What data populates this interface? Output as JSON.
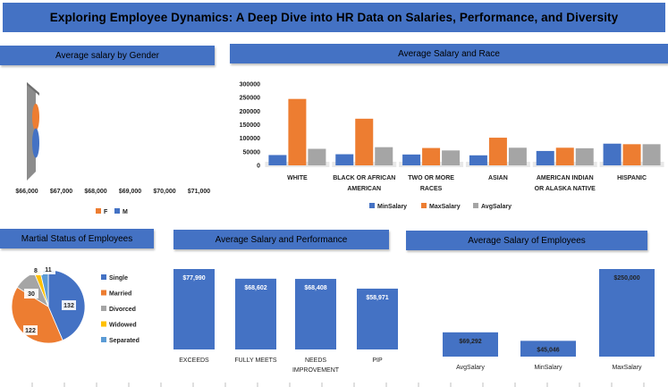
{
  "title": "Exploring Employee Dynamics: A Deep Dive into HR Data on Salaries, Performance, and Diversity",
  "colors": {
    "header": "#4472c4",
    "blue": "#4472c4",
    "orange": "#ed7d31",
    "gray": "#a5a5a5",
    "yellow": "#ffc000",
    "lightblue": "#5b9bd5"
  },
  "panels": {
    "gender": "Average salary  by Gender",
    "race": "Average  Salary and Race",
    "marital": "Martial Status of Employees",
    "performance": "Average  Salary and Performance",
    "employees": "Average  Salary  of Employees"
  },
  "chart_data": [
    {
      "id": "gender",
      "type": "bar",
      "orientation": "horizontal",
      "style": "3d-cylinder",
      "categories": [
        "M",
        "F"
      ],
      "series": [
        {
          "name": "F",
          "values": [
            null,
            67900
          ]
        },
        {
          "name": "M",
          "values": [
            70500,
            null
          ]
        }
      ],
      "xlim": [
        66000,
        71000
      ],
      "xticks": [
        "$66,000",
        "$67,000",
        "$68,000",
        "$69,000",
        "$70,000",
        "$71,000"
      ],
      "legend": [
        "F",
        "M"
      ],
      "legend_position": "bottom"
    },
    {
      "id": "race",
      "type": "bar",
      "categories": [
        "WHITE",
        "BLACK OR AFRICAN AMERICAN",
        "TWO OR MORE RACES",
        "ASIAN",
        "AMERICAN INDIAN OR ALASKA NATIVE",
        "HISPANIC"
      ],
      "category_lines": [
        [
          "WHITE"
        ],
        [
          "BLACK OR AFRICAN",
          "AMERICAN"
        ],
        [
          "TWO OR MORE",
          "RACES"
        ],
        [
          "ASIAN"
        ],
        [
          "AMERICAN INDIAN",
          "OR ALASKA NATIVE"
        ],
        [
          "HISPANIC"
        ]
      ],
      "series": [
        {
          "name": "MinSalary",
          "values": [
            38000,
            41000,
            40000,
            37000,
            53000,
            80000
          ]
        },
        {
          "name": "MaxSalary",
          "values": [
            245000,
            172000,
            64000,
            102000,
            65000,
            78000
          ]
        },
        {
          "name": "AvgSalary",
          "values": [
            61000,
            67000,
            55000,
            65000,
            63000,
            78000
          ]
        }
      ],
      "ylim": [
        0,
        300000
      ],
      "yticks": [
        "0",
        "50000",
        "100000",
        "150000",
        "200000",
        "250000",
        "300000"
      ],
      "legend_position": "bottom"
    },
    {
      "id": "marital",
      "type": "pie",
      "categories": [
        "Single",
        "Married",
        "Divorced",
        "Widowed",
        "Separated"
      ],
      "values": [
        132,
        122,
        30,
        8,
        11
      ],
      "labels": [
        "132",
        "122",
        "30",
        "8",
        "11"
      ],
      "legend_position": "right"
    },
    {
      "id": "performance",
      "type": "bar",
      "categories": [
        "EXCEEDS",
        "FULLY MEETS",
        "NEEDS IMPROVEMENT",
        "PIP"
      ],
      "category_lines": [
        [
          "EXCEEDS"
        ],
        [
          "FULLY MEETS"
        ],
        [
          "NEEDS",
          "IMPROVEMENT"
        ],
        [
          "PIP"
        ]
      ],
      "values": [
        77990,
        68602,
        68408,
        58971
      ],
      "labels": [
        "$77,990",
        "$68,602",
        "$68,408",
        "$58,971"
      ]
    },
    {
      "id": "employees",
      "type": "bar",
      "categories": [
        "AvgSalary",
        "MinSalary",
        "MaxSalary"
      ],
      "values": [
        69292,
        45046,
        250000
      ],
      "labels": [
        "$69,292",
        "$45,046",
        "$250,000"
      ]
    }
  ]
}
